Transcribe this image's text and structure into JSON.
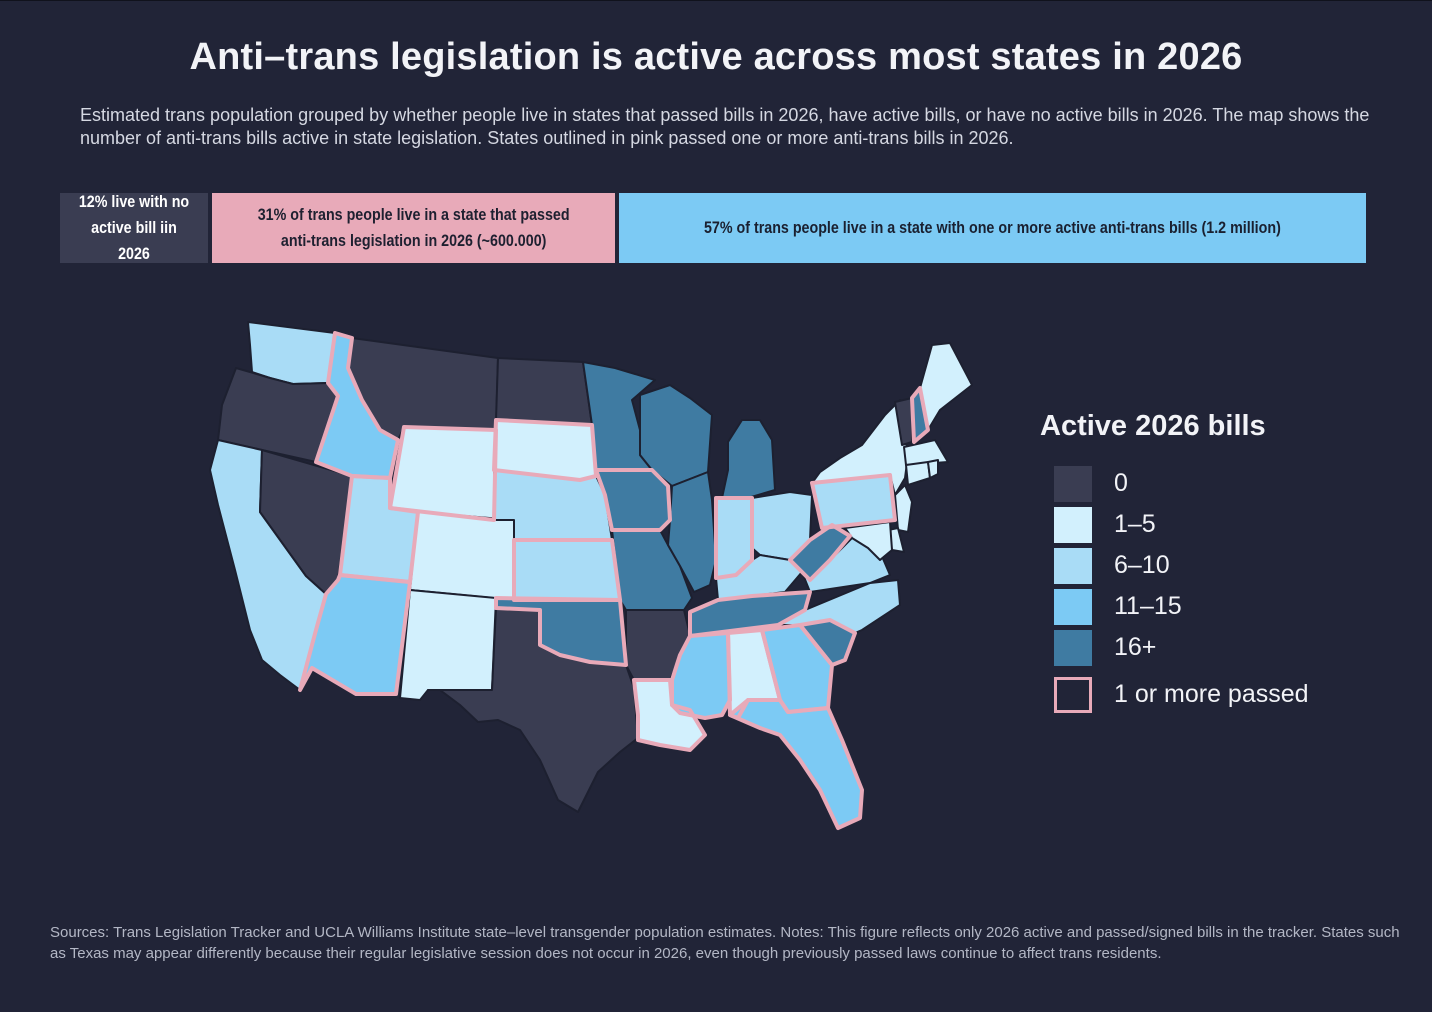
{
  "title": "Anti–trans legislation is active across most states in 2026",
  "subtitle": "Estimated trans population grouped by whether people live in states that passed bills in 2026, have active bills, or have no active bills in 2026. The map shows the number of anti-trans bills active in state legislation. States outlined in pink passed one or more anti-trans bills in 2026.",
  "population_bar": {
    "no_active": {
      "label": "12% live with no\nactive bill iin 2026",
      "percent": 12,
      "color": "#3a3d52"
    },
    "passed": {
      "label": "31% of trans people live in a state that passed\nanti-trans legislation in 2026 (~600.000)",
      "percent": 31,
      "color": "#e8aab9"
    },
    "active": {
      "label": "57% of trans people live in a state with one or more active anti-trans bills (1.2 million)",
      "percent": 57,
      "color": "#7ccaf4"
    }
  },
  "legend": {
    "title": "Active 2026 bills",
    "bins": [
      {
        "label": "0",
        "color": "#3a3d52"
      },
      {
        "label": "1–5",
        "color": "#d2f0fd"
      },
      {
        "label": "6–10",
        "color": "#a9dcf6"
      },
      {
        "label": "11–15",
        "color": "#7ccaf4"
      },
      {
        "label": "16+",
        "color": "#3f7ba2"
      }
    ],
    "passed_label": "1 or more passed",
    "passed_outline_color": "#e8aab9"
  },
  "states": [
    {
      "state": "WA",
      "bin": "6–10",
      "passed": false
    },
    {
      "state": "OR",
      "bin": "0",
      "passed": false
    },
    {
      "state": "CA",
      "bin": "6–10",
      "passed": false
    },
    {
      "state": "NV",
      "bin": "0",
      "passed": false
    },
    {
      "state": "ID",
      "bin": "11–15",
      "passed": true
    },
    {
      "state": "MT",
      "bin": "0",
      "passed": false
    },
    {
      "state": "WY",
      "bin": "1–5",
      "passed": true
    },
    {
      "state": "UT",
      "bin": "6–10",
      "passed": true
    },
    {
      "state": "AZ",
      "bin": "11–15",
      "passed": true
    },
    {
      "state": "CO",
      "bin": "1–5",
      "passed": false
    },
    {
      "state": "NM",
      "bin": "1–5",
      "passed": false
    },
    {
      "state": "ND",
      "bin": "0",
      "passed": false
    },
    {
      "state": "SD",
      "bin": "1–5",
      "passed": true
    },
    {
      "state": "NE",
      "bin": "6–10",
      "passed": false
    },
    {
      "state": "KS",
      "bin": "6–10",
      "passed": true
    },
    {
      "state": "OK",
      "bin": "16+",
      "passed": true
    },
    {
      "state": "TX",
      "bin": "0",
      "passed": false
    },
    {
      "state": "MN",
      "bin": "16+",
      "passed": false
    },
    {
      "state": "IA",
      "bin": "16+",
      "passed": true
    },
    {
      "state": "MO",
      "bin": "16+",
      "passed": false
    },
    {
      "state": "AR",
      "bin": "0",
      "passed": false
    },
    {
      "state": "LA",
      "bin": "1–5",
      "passed": true
    },
    {
      "state": "WI",
      "bin": "16+",
      "passed": false
    },
    {
      "state": "IL",
      "bin": "16+",
      "passed": false
    },
    {
      "state": "MI",
      "bin": "16+",
      "passed": false
    },
    {
      "state": "IN",
      "bin": "6–10",
      "passed": true
    },
    {
      "state": "OH",
      "bin": "6–10",
      "passed": false
    },
    {
      "state": "KY",
      "bin": "6–10",
      "passed": false
    },
    {
      "state": "TN",
      "bin": "16+",
      "passed": true
    },
    {
      "state": "MS",
      "bin": "11–15",
      "passed": true
    },
    {
      "state": "AL",
      "bin": "1–5",
      "passed": true
    },
    {
      "state": "GA",
      "bin": "11–15",
      "passed": true
    },
    {
      "state": "FL",
      "bin": "11–15",
      "passed": true
    },
    {
      "state": "SC",
      "bin": "16+",
      "passed": true
    },
    {
      "state": "NC",
      "bin": "6–10",
      "passed": false
    },
    {
      "state": "VA",
      "bin": "6–10",
      "passed": false
    },
    {
      "state": "WV",
      "bin": "16+",
      "passed": true
    },
    {
      "state": "PA",
      "bin": "6–10",
      "passed": true
    },
    {
      "state": "NY",
      "bin": "1–5",
      "passed": false
    },
    {
      "state": "NJ",
      "bin": "1–5",
      "passed": false
    },
    {
      "state": "DE",
      "bin": "1–5",
      "passed": false
    },
    {
      "state": "MD",
      "bin": "1–5",
      "passed": false
    },
    {
      "state": "VT",
      "bin": "0",
      "passed": false
    },
    {
      "state": "NH",
      "bin": "16+",
      "passed": true
    },
    {
      "state": "ME",
      "bin": "1–5",
      "passed": false
    },
    {
      "state": "MA",
      "bin": "1–5",
      "passed": false
    },
    {
      "state": "CT",
      "bin": "1–5",
      "passed": false
    },
    {
      "state": "RI",
      "bin": "1–5",
      "passed": false
    }
  ],
  "sources": "Sources: Trans Legislation Tracker and UCLA Williams Institute state–level transgender population estimates. Notes: This figure reflects only 2026 active and passed/signed bills in the tracker. States such as Texas may appear differently because their regular legislative session does not occur in 2026, even though previously passed laws continue to affect trans residents."
}
